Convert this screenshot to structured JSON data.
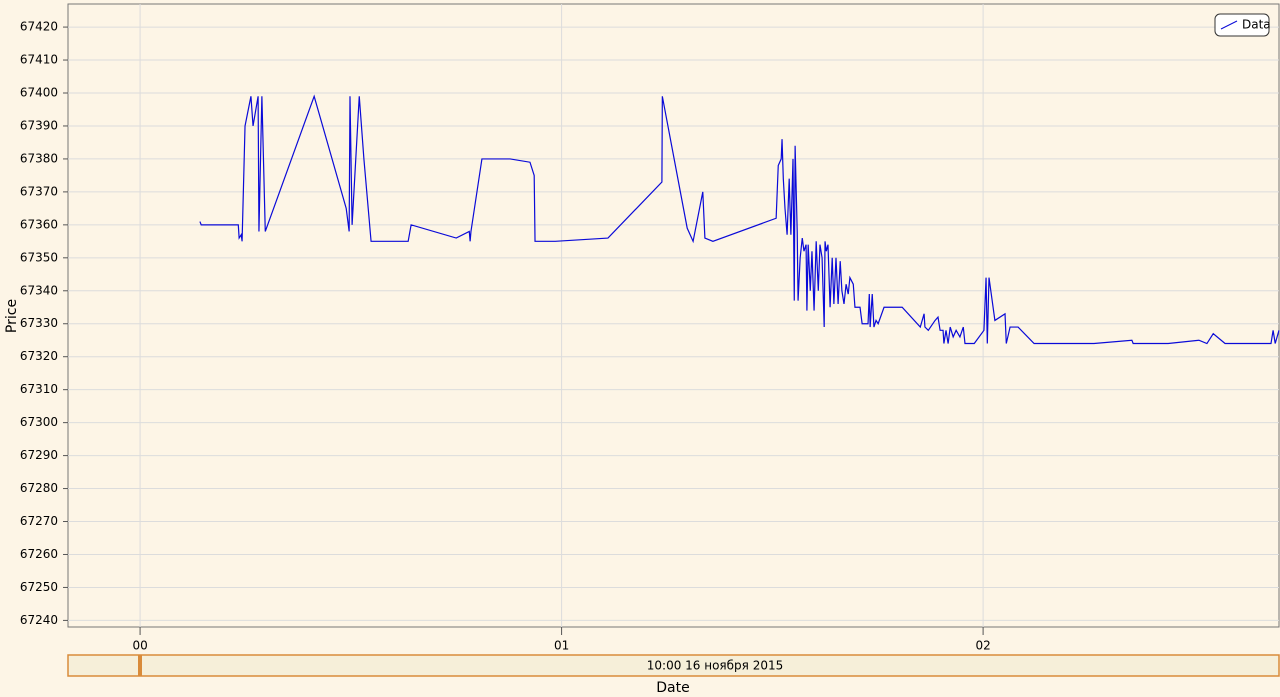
{
  "chart_data": {
    "type": "line",
    "x_label": "Date",
    "y_label": "Price",
    "navigator_label": "10:00 16 ноября 2015",
    "xlim": [
      -0.171,
      2.702
    ],
    "xticks": [
      {
        "value": 0,
        "label": "00"
      },
      {
        "value": 1,
        "label": "01"
      },
      {
        "value": 2,
        "label": "02"
      }
    ],
    "ylim": [
      67238,
      67427
    ],
    "yticks": [
      67240,
      67250,
      67260,
      67270,
      67280,
      67290,
      67300,
      67310,
      67320,
      67330,
      67340,
      67350,
      67360,
      67370,
      67380,
      67390,
      67400,
      67410,
      67420
    ],
    "grid": true,
    "legend": "upper right",
    "series": [
      {
        "name": "Data",
        "color": "#0a0ad8",
        "x": [
          0.142,
          0.145,
          0.233,
          0.235,
          0.24,
          0.242,
          0.249,
          0.263,
          0.268,
          0.28,
          0.282,
          0.289,
          0.297,
          0.413,
          0.489,
          0.496,
          0.498,
          0.503,
          0.52,
          0.531,
          0.548,
          0.636,
          0.643,
          0.75,
          0.781,
          0.783,
          0.785,
          0.811,
          0.878,
          0.925,
          0.935,
          0.937,
          0.985,
          1.11,
          1.238,
          1.239,
          1.298,
          1.312,
          1.335,
          1.34,
          1.359,
          1.509,
          1.514,
          1.521,
          1.523,
          1.526,
          1.53,
          1.535,
          1.54,
          1.542,
          1.544,
          1.549,
          1.552,
          1.554,
          1.559,
          1.561,
          1.566,
          1.571,
          1.575,
          1.58,
          1.582,
          1.585,
          1.59,
          1.594,
          1.599,
          1.604,
          1.609,
          1.613,
          1.618,
          1.623,
          1.625,
          1.628,
          1.632,
          1.637,
          1.642,
          1.646,
          1.651,
          1.656,
          1.661,
          1.665,
          1.67,
          1.675,
          1.68,
          1.684,
          1.692,
          1.696,
          1.708,
          1.713,
          1.727,
          1.73,
          1.732,
          1.737,
          1.741,
          1.746,
          1.751,
          1.765,
          1.808,
          1.851,
          1.86,
          1.862,
          1.87,
          1.886,
          1.893,
          1.898,
          1.905,
          1.907,
          1.912,
          1.917,
          1.922,
          1.929,
          1.936,
          1.945,
          1.953,
          1.957,
          1.979,
          2.002,
          2.007,
          2.01,
          2.014,
          2.028,
          2.052,
          2.055,
          2.064,
          2.083,
          2.121,
          2.263,
          2.353,
          2.356,
          2.439,
          2.512,
          2.531,
          2.546,
          2.574,
          2.683,
          2.688,
          2.693,
          2.702
        ],
        "values": [
          67361,
          67360,
          67360,
          67356,
          67357,
          67355,
          67390,
          67399,
          67390,
          67399,
          67358,
          67399,
          67358,
          67399,
          67365,
          67358,
          67399,
          67360,
          67399,
          67380,
          67355,
          67355,
          67360,
          67356,
          67358,
          67355,
          67358,
          67380,
          67380,
          67379,
          67375,
          67355,
          67355,
          67356,
          67373,
          67399,
          67359,
          67355,
          67370,
          67356,
          67355,
          67362,
          67378,
          67380,
          67386,
          67374,
          67365,
          67357,
          67374,
          67365,
          67357,
          67380,
          67337,
          67384,
          67358,
          67337,
          67350,
          67356,
          67352,
          67354,
          67334,
          67354,
          67340,
          67352,
          67334,
          67355,
          67340,
          67354,
          67350,
          67329,
          67355,
          67352,
          67354,
          67335,
          67350,
          67336,
          67350,
          67336,
          67349,
          67340,
          67336,
          67342,
          67339,
          67344,
          67342,
          67335,
          67335,
          67330,
          67330,
          67339,
          67329,
          67339,
          67329,
          67331,
          67330,
          67335,
          67335,
          67329,
          67333,
          67329,
          67328,
          67331,
          67332,
          67328,
          67328,
          67324,
          67328,
          67324,
          67329,
          67326,
          67328,
          67326,
          67329,
          67324,
          67324,
          67328,
          67344,
          67324,
          67344,
          67331,
          67333,
          67324,
          67329,
          67329,
          67324,
          67324,
          67325,
          67324,
          67324,
          67325,
          67324,
          67327,
          67324,
          67324,
          67328,
          67324,
          67328
        ]
      }
    ]
  }
}
